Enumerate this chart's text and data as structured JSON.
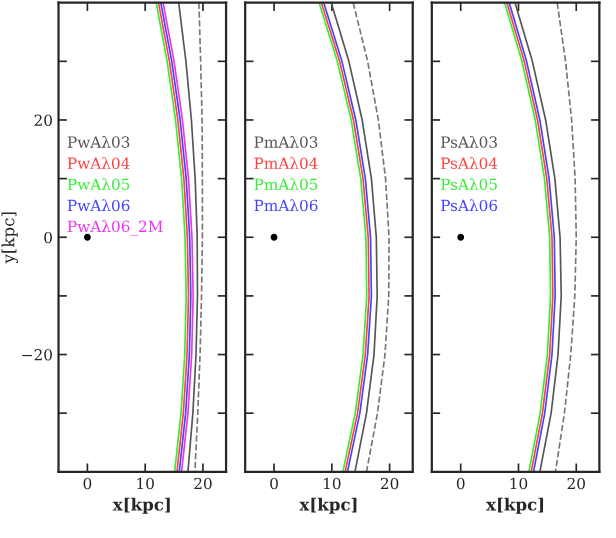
{
  "chart_data": [
    {
      "type": "line",
      "xlabel": "x[kpc]",
      "ylabel": "y[kpc]",
      "xlim": [
        -5,
        24
      ],
      "ylim": [
        -40,
        40
      ],
      "xticks": [
        0,
        10,
        20
      ],
      "yticks": [
        {
          "value": -30,
          "label": null
        },
        {
          "value": -20,
          "label": "−20"
        },
        {
          "value": -10,
          "label": null
        },
        0,
        {
          "value": 10,
          "label": null
        },
        20,
        {
          "value": 30,
          "label": null
        }
      ],
      "legend": "left",
      "grid": false,
      "series": [
        {
          "name": "PwAλ03",
          "color": "#555555",
          "x": [
            15.8,
            17.05,
            18.0,
            18.65,
            19.0,
            19.05,
            18.8,
            18.25,
            17.4
          ],
          "values": [
            40,
            30,
            20,
            10,
            0,
            -10,
            -20,
            -30,
            -40
          ]
        },
        {
          "color": "#777777",
          "line_style": "dashed",
          "x": [
            19.3,
            19.6,
            19.85,
            19.9,
            19.9,
            19.75,
            19.5,
            19.1,
            18.6
          ],
          "values": [
            40,
            30,
            20,
            10,
            0,
            -10,
            -20,
            -30,
            -40
          ]
        },
        {
          "name": "PwAλ04",
          "color": "#ff4040",
          "x": [
            12.3,
            14.2,
            15.65,
            16.7,
            17.3,
            17.5,
            17.25,
            16.6,
            15.5
          ],
          "values": [
            40,
            30,
            20,
            10,
            0,
            -10,
            -20,
            -30,
            -40
          ]
        },
        {
          "name": "PwAλ05",
          "color": "#33ee33",
          "x": [
            11.9,
            13.8,
            15.25,
            16.3,
            16.9,
            17.1,
            16.85,
            16.2,
            15.1
          ],
          "values": [
            40,
            30,
            20,
            10,
            0,
            -10,
            -20,
            -30,
            -40
          ]
        },
        {
          "name": "PwAλ06",
          "color": "#4444ff",
          "x": [
            12.7,
            14.6,
            16.05,
            17.1,
            17.7,
            17.9,
            17.65,
            17.0,
            15.9
          ],
          "values": [
            40,
            30,
            20,
            10,
            0,
            -10,
            -20,
            -30,
            -40
          ]
        },
        {
          "name": "PwAλ06_2M",
          "color": "#ee33ee",
          "x": [
            13.1,
            15.0,
            16.45,
            17.5,
            18.1,
            18.3,
            18.05,
            17.4,
            16.3
          ],
          "values": [
            40,
            30,
            20,
            10,
            0,
            -10,
            -20,
            -30,
            -40
          ]
        },
        {
          "type": "scatter",
          "color": "#000000",
          "x": [
            0
          ],
          "values": [
            0
          ]
        }
      ]
    },
    {
      "type": "line",
      "xlabel": "x[kpc]",
      "xlim": [
        -5,
        24
      ],
      "ylim": [
        -40,
        40
      ],
      "tick_labels": "x",
      "xticks": [
        0,
        10,
        20
      ],
      "yticks": [
        -30,
        -20,
        -10,
        0,
        10,
        20,
        30
      ],
      "legend": "left",
      "grid": false,
      "series": [
        {
          "name": "PmAλ03",
          "color": "#555555",
          "x": [
            9.9,
            12.95,
            15.25,
            16.85,
            17.7,
            17.85,
            17.3,
            16.0,
            14.0
          ],
          "values": [
            40,
            30,
            20,
            10,
            0,
            -10,
            -20,
            -30,
            -40
          ]
        },
        {
          "color": "#777777",
          "line_style": "dashed",
          "x": [
            13.7,
            16.2,
            18.05,
            19.3,
            19.9,
            19.85,
            19.2,
            17.9,
            16.0
          ],
          "values": [
            40,
            30,
            20,
            10,
            0,
            -10,
            -20,
            -30,
            -40
          ]
        },
        {
          "name": "PmAλ04",
          "color": "#ff4040",
          "x": [
            8.2,
            11.35,
            13.75,
            15.4,
            16.3,
            16.45,
            15.8,
            14.45,
            12.3
          ],
          "values": [
            40,
            30,
            20,
            10,
            0,
            -10,
            -20,
            -30,
            -40
          ]
        },
        {
          "name": "PmAλ05",
          "color": "#33ee33",
          "x": [
            7.8,
            10.95,
            13.35,
            15.0,
            15.9,
            16.05,
            15.4,
            14.05,
            11.9
          ],
          "values": [
            40,
            30,
            20,
            10,
            0,
            -10,
            -20,
            -30,
            -40
          ]
        },
        {
          "name": "PmAλ06",
          "color": "#4444ff",
          "x": [
            8.6,
            11.75,
            14.15,
            15.8,
            16.7,
            16.85,
            16.2,
            14.85,
            12.7
          ],
          "values": [
            40,
            30,
            20,
            10,
            0,
            -10,
            -20,
            -30,
            -40
          ]
        },
        {
          "type": "scatter",
          "color": "#000000",
          "x": [
            0
          ],
          "values": [
            0
          ]
        }
      ]
    },
    {
      "type": "line",
      "xlabel": "x[kpc]",
      "xlim": [
        -5,
        24
      ],
      "ylim": [
        -40,
        40
      ],
      "tick_labels": "x",
      "xticks": [
        0,
        10,
        20
      ],
      "yticks": [
        -30,
        -20,
        -10,
        0,
        10,
        20,
        30
      ],
      "legend": "left",
      "grid": false,
      "series": [
        {
          "name": "PsAλ03",
          "color": "#555555",
          "x": [
            9.4,
            12.4,
            14.7,
            16.3,
            17.2,
            17.4,
            16.85,
            15.65,
            13.7
          ],
          "values": [
            40,
            30,
            20,
            10,
            0,
            -10,
            -20,
            -30,
            -40
          ]
        },
        {
          "color": "#777777",
          "line_style": "dashed",
          "x": [
            16.7,
            18.15,
            19.2,
            19.8,
            20.0,
            19.75,
            19.05,
            17.95,
            16.4
          ],
          "values": [
            40,
            30,
            20,
            10,
            0,
            -10,
            -20,
            -30,
            -40
          ]
        },
        {
          "name": "PsAλ04",
          "color": "#ff4040",
          "x": [
            8.0,
            11.0,
            13.3,
            14.9,
            15.8,
            15.95,
            15.4,
            14.15,
            12.2
          ],
          "values": [
            40,
            30,
            20,
            10,
            0,
            -10,
            -20,
            -30,
            -40
          ]
        },
        {
          "name": "PsAλ05",
          "color": "#33ee33",
          "x": [
            7.6,
            10.6,
            12.9,
            14.5,
            15.4,
            15.55,
            15.0,
            13.75,
            11.8
          ],
          "values": [
            40,
            30,
            20,
            10,
            0,
            -10,
            -20,
            -30,
            -40
          ]
        },
        {
          "name": "PsAλ06",
          "color": "#4444ff",
          "x": [
            8.4,
            11.4,
            13.7,
            15.3,
            16.2,
            16.35,
            15.8,
            14.55,
            12.6
          ],
          "values": [
            40,
            30,
            20,
            10,
            0,
            -10,
            -20,
            -30,
            -40
          ]
        },
        {
          "type": "scatter",
          "color": "#000000",
          "x": [
            0
          ],
          "values": [
            0
          ]
        }
      ]
    }
  ]
}
